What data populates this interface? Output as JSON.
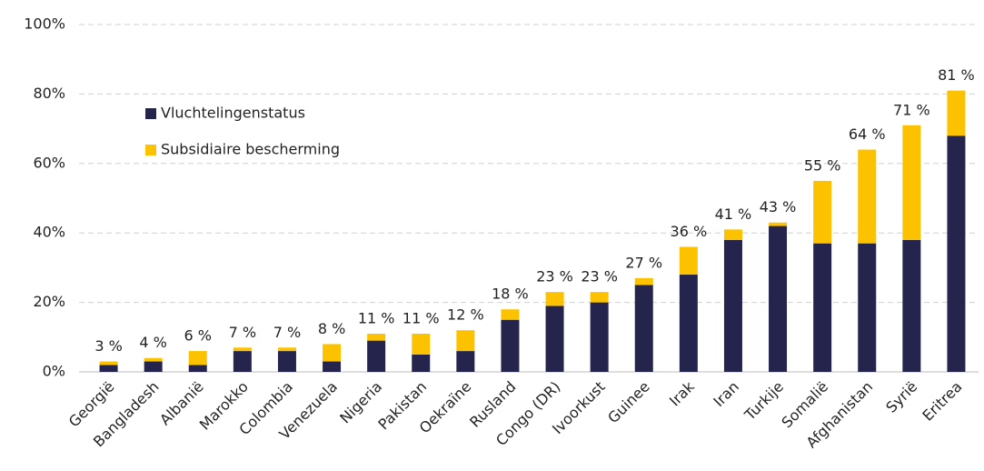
{
  "chart_data": {
    "type": "stacked_bar",
    "categories": [
      "Georgië",
      "Bangladesh",
      "Albanië",
      "Marokko",
      "Colombia",
      "Venezuela",
      "Nigeria",
      "Pakistan",
      "Oekraïne",
      "Rusland",
      "Congo (DR)",
      "Ivoorkust",
      "Guinee",
      "Irak",
      "Iran",
      "Turkije",
      "Somalië",
      "Afghanistan",
      "Syrië",
      "Eritrea"
    ],
    "series": [
      {
        "name": "Vluchtelingenstatus",
        "color": "#24244d",
        "values": [
          2,
          3,
          2,
          6,
          6,
          3,
          9,
          5,
          6,
          15,
          19,
          20,
          25,
          28,
          38,
          42,
          37,
          37,
          38,
          68
        ]
      },
      {
        "name": "Subsidiaire bescherming",
        "color": "#fcc200",
        "values": [
          1,
          1,
          4,
          1,
          1,
          5,
          2,
          6,
          6,
          3,
          4,
          3,
          2,
          8,
          3,
          1,
          18,
          27,
          33,
          13
        ]
      }
    ],
    "totals": [
      3,
      4,
      6,
      7,
      7,
      8,
      11,
      11,
      12,
      18,
      23,
      23,
      27,
      36,
      41,
      43,
      55,
      64,
      71,
      81
    ],
    "total_labels": [
      "3 %",
      "4 %",
      "6 %",
      "7 %",
      "7 %",
      "8 %",
      "11 %",
      "11 %",
      "12 %",
      "18 %",
      "23 %",
      "23 %",
      "27 %",
      "36 %",
      "41 %",
      "43 %",
      "55 %",
      "64 %",
      "71 %",
      "81 %"
    ],
    "ylim": [
      0,
      100
    ],
    "yticks": [
      {
        "value": 0,
        "label": "0%"
      },
      {
        "value": 20,
        "label": "20%"
      },
      {
        "value": 40,
        "label": "40%"
      },
      {
        "value": 60,
        "label": "60%"
      },
      {
        "value": 80,
        "label": "80%"
      },
      {
        "value": 100,
        "label": "100%"
      }
    ],
    "grid": true,
    "legend": "upper left"
  }
}
